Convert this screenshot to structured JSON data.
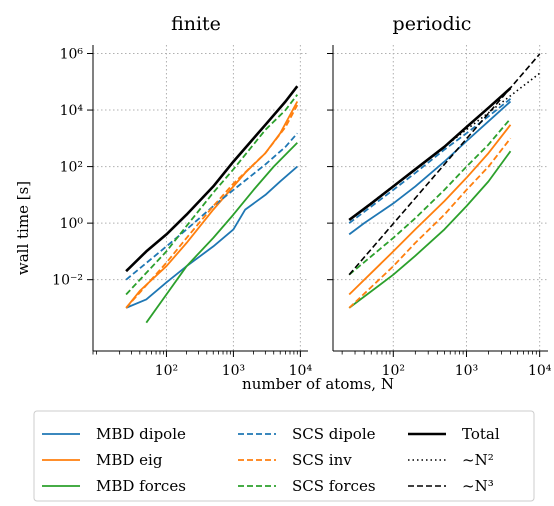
{
  "chart_data": {
    "type": "line",
    "xscale": "log",
    "yscale": "log",
    "shared_ylabel": "wall time [s]",
    "shared_xlabel": "number of atoms, N",
    "grid": true,
    "legend_position": "bottom",
    "x_ticks": [
      100,
      1000,
      10000
    ],
    "y_ticks": [
      0.01,
      1,
      100,
      10000,
      1000000
    ],
    "legend": [
      {
        "key": "mbd_dipole",
        "label": "MBD dipole",
        "color": "#1f77b4",
        "dash": "solid",
        "width": 1.8
      },
      {
        "key": "scs_dipole",
        "label": "SCS dipole",
        "color": "#1f77b4",
        "dash": "dashed",
        "width": 1.8
      },
      {
        "key": "total",
        "label": "Total",
        "color": "#000000",
        "dash": "solid",
        "width": 2.6
      },
      {
        "key": "mbd_eig",
        "label": "MBD eig",
        "color": "#ff7f0e",
        "dash": "solid",
        "width": 1.8
      },
      {
        "key": "scs_inv",
        "label": "SCS inv",
        "color": "#ff7f0e",
        "dash": "dashed",
        "width": 1.8
      },
      {
        "key": "n2",
        "label": "~N²",
        "color": "#000000",
        "dash": "dotted",
        "width": 1.6
      },
      {
        "key": "mbd_forces",
        "label": "MBD forces",
        "color": "#2ca02c",
        "dash": "solid",
        "width": 1.8
      },
      {
        "key": "scs_forces",
        "label": "SCS forces",
        "color": "#2ca02c",
        "dash": "dashed",
        "width": 1.8
      },
      {
        "key": "n3",
        "label": "~N³",
        "color": "#000000",
        "dash": "dashed",
        "width": 1.6
      }
    ],
    "panels": [
      {
        "title": "finite",
        "xlim": [
          8,
          13000
        ],
        "ylim": [
          3e-05,
          2000000
        ],
        "series": [
          {
            "key": "mbd_dipole",
            "x": [
              25,
              50,
              100,
              200,
              500,
              1000,
              1500,
              3000,
              5000,
              9000
            ],
            "y": [
              0.001,
              0.002,
              0.008,
              0.03,
              0.15,
              0.6,
              3,
              10,
              30,
              100
            ]
          },
          {
            "key": "mbd_eig",
            "x": [
              25,
              40,
              100,
              200,
              500,
              1000,
              1500,
              3000,
              5000,
              9000
            ],
            "y": [
              0.001,
              0.004,
              0.03,
              0.2,
              3,
              20,
              60,
              300,
              1500,
              20000
            ]
          },
          {
            "key": "mbd_forces",
            "x": [
              50,
              100,
              200,
              500,
              1000,
              2000,
              4000,
              9000
            ],
            "y": [
              0.0003,
              0.003,
              0.03,
              0.3,
              2,
              15,
              100,
              700
            ]
          },
          {
            "key": "scs_dipole",
            "x": [
              25,
              100,
              200,
              500,
              1000,
              3000,
              6000,
              9000
            ],
            "y": [
              0.01,
              0.15,
              0.6,
              4,
              15,
              120,
              500,
              1500
            ]
          },
          {
            "key": "scs_inv",
            "x": [
              25,
              100,
              200,
              500,
              1000,
              3000,
              6000,
              9000
            ],
            "y": [
              0.001,
              0.04,
              0.3,
              4,
              25,
              300,
              2500,
              15000
            ]
          },
          {
            "key": "scs_forces",
            "x": [
              25,
              100,
              200,
              500,
              1000,
              3000,
              6000,
              9000
            ],
            "y": [
              0.003,
              0.1,
              0.8,
              12,
              80,
              2000,
              10000,
              35000
            ]
          },
          {
            "key": "total",
            "x": [
              25,
              50,
              100,
              200,
              500,
              1000,
              3000,
              6000,
              9000
            ],
            "y": [
              0.02,
              0.1,
              0.4,
              2,
              20,
              150,
              3000,
              20000,
              70000
            ]
          }
        ]
      },
      {
        "title": "periodic",
        "xlim": [
          15,
          13000
        ],
        "ylim": [
          3e-05,
          2000000
        ],
        "series": [
          {
            "key": "mbd_dipole",
            "x": [
              25,
              40,
              100,
              200,
              500,
              1000,
              2000,
              4000
            ],
            "y": [
              0.4,
              1,
              5,
              20,
              150,
              800,
              4000,
              20000
            ]
          },
          {
            "key": "mbd_eig",
            "x": [
              25,
              100,
              200,
              500,
              1000,
              2000,
              4000
            ],
            "y": [
              0.003,
              0.1,
              0.6,
              6,
              40,
              300,
              3000
            ]
          },
          {
            "key": "mbd_forces",
            "x": [
              25,
              100,
              200,
              500,
              1000,
              2000,
              4000
            ],
            "y": [
              0.001,
              0.015,
              0.07,
              0.6,
              4,
              30,
              350
            ]
          },
          {
            "key": "scs_dipole",
            "x": [
              25,
              100,
              200,
              500,
              1000,
              2000,
              4000
            ],
            "y": [
              1,
              15,
              60,
              400,
              1500,
              6000,
              25000
            ]
          },
          {
            "key": "scs_inv",
            "x": [
              25,
              100,
              200,
              500,
              1000,
              2000,
              4000
            ],
            "y": [
              0.001,
              0.03,
              0.2,
              2,
              15,
              100,
              1000
            ]
          },
          {
            "key": "scs_forces",
            "x": [
              25,
              100,
              200,
              500,
              1000,
              2000,
              4000
            ],
            "y": [
              0.015,
              0.3,
              1.5,
              15,
              100,
              600,
              5000
            ]
          },
          {
            "key": "total",
            "x": [
              25,
              50,
              100,
              200,
              500,
              1000,
              2000,
              4000
            ],
            "y": [
              1.3,
              5,
              20,
              80,
              500,
              2500,
              12000,
              60000
            ]
          },
          {
            "key": "n2",
            "x": [
              25,
              10000
            ],
            "y": [
              1.3,
              200000
            ]
          },
          {
            "key": "n3",
            "x": [
              25,
              10000
            ],
            "y": [
              0.015,
              960000
            ]
          }
        ]
      }
    ]
  }
}
